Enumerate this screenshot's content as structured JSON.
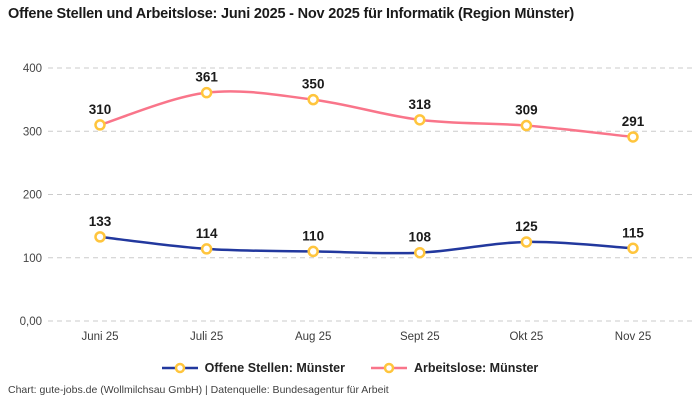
{
  "title": "Offene Stellen und Arbeitslose: Juni 2025 - Nov 2025 für Informatik (Region Münster)",
  "footer": "Chart: gute-jobs.de (Wollmilchsau GmbH) | Datenquelle: Bundesagentur für Arbeit",
  "chart_data": {
    "type": "line",
    "categories": [
      "Juni 25",
      "Juli 25",
      "Aug 25",
      "Sept 25",
      "Okt 25",
      "Nov 25"
    ],
    "series": [
      {
        "name": "Offene Stellen: Münster",
        "color": "#22389E",
        "values": [
          133,
          114,
          110,
          108,
          125,
          115
        ]
      },
      {
        "name": "Arbeitslose: Münster",
        "color": "#F9758A",
        "values": [
          310,
          361,
          350,
          318,
          309,
          291
        ]
      }
    ],
    "y_ticks": [
      "400",
      "300",
      "200",
      "100",
      "0,00"
    ],
    "y_tick_values": [
      400,
      300,
      200,
      100,
      0
    ],
    "ylim": [
      0,
      400
    ],
    "grid": "horizontal-dashed",
    "legend_position": "bottom",
    "marker": {
      "shape": "circle",
      "ring_color": "#FFC53D",
      "fill": "#ffffff"
    },
    "colors": {
      "grid": "#cbcbcb",
      "axis_text": "#444444",
      "x_axis_text": "#3c3c3c",
      "data_label": "#1b1b1b"
    }
  }
}
